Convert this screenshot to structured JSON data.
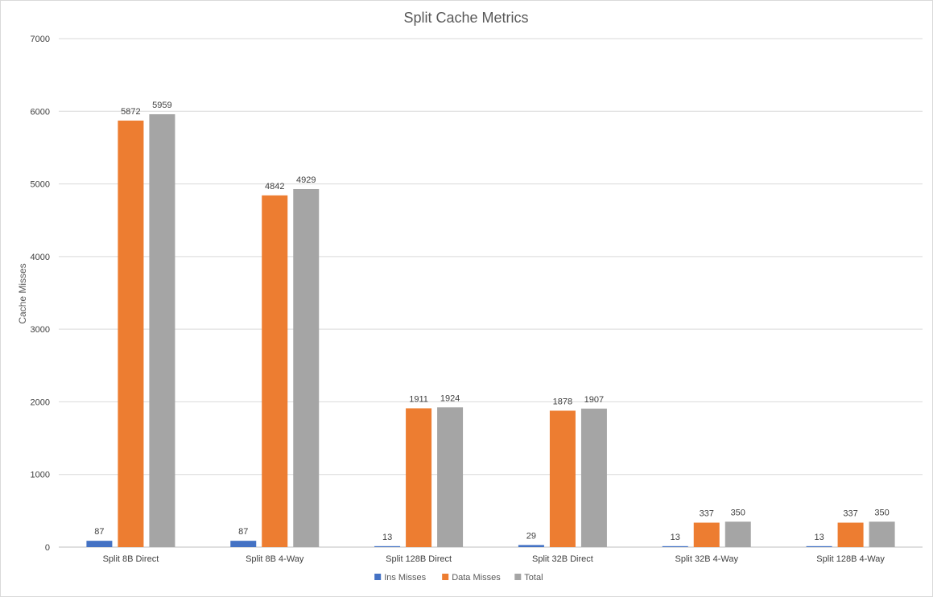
{
  "chart_data": {
    "type": "bar",
    "title": "Split Cache Metrics",
    "xlabel": "",
    "ylabel": "Cache Misses",
    "ylim": [
      0,
      7000
    ],
    "yticks": [
      0,
      1000,
      2000,
      3000,
      4000,
      5000,
      6000,
      7000
    ],
    "grid": true,
    "legend_position": "bottom",
    "categories": [
      "Split 8B Direct",
      "Split 8B 4-Way",
      "Split 128B Direct",
      "Split 32B Direct",
      "Split 32B 4-Way",
      "Split 128B 4-Way"
    ],
    "series": [
      {
        "name": "Ins Misses",
        "color": "#4472c4",
        "values": [
          87,
          87,
          13,
          29,
          13,
          13
        ]
      },
      {
        "name": "Data Misses",
        "color": "#ed7d31",
        "values": [
          5872,
          4842,
          1911,
          1878,
          337,
          337
        ]
      },
      {
        "name": "Total",
        "color": "#a5a5a5",
        "values": [
          5959,
          4929,
          1924,
          1907,
          350,
          350
        ]
      }
    ]
  }
}
